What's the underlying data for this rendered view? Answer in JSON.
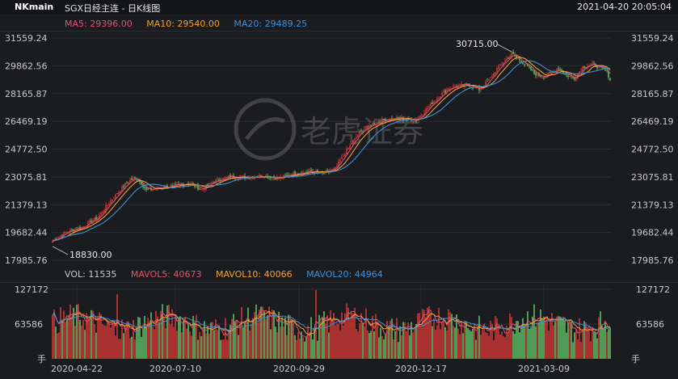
{
  "header": {
    "symbol": "NKmain",
    "name": "SGX日经主连 - 日K线图",
    "datetime": "2021-04-20 20:05:04"
  },
  "ma_legend": [
    {
      "label": "MA5: 29396.00",
      "color": "#e0506e"
    },
    {
      "label": "MA10: 29540.00",
      "color": "#f0a030"
    },
    {
      "label": "MA20: 29489.25",
      "color": "#3d8fd8"
    }
  ],
  "vol_legend": [
    {
      "label": "VOL: 11535",
      "color": "#c8c8c8"
    },
    {
      "label": "MAVOL5: 40673",
      "color": "#e0506e"
    },
    {
      "label": "MAVOL10: 40066",
      "color": "#f0a030"
    },
    {
      "label": "MAVOL20: 44964",
      "color": "#3d8fd8"
    }
  ],
  "watermark": "老虎证券",
  "colors": {
    "up": "#e53935",
    "down": "#66d36e",
    "ma5": "#e0506e",
    "ma10": "#f0a030",
    "ma20": "#3d8fd8"
  },
  "chart_data": {
    "type": "candlestick",
    "y_ticks": [
      "31559.24",
      "29862.56",
      "28165.87",
      "26469.19",
      "24772.50",
      "23075.81",
      "21379.13",
      "19682.44",
      "17985.76"
    ],
    "ylim": [
      17985.76,
      31559.24
    ],
    "vol_ticks": [
      "127172",
      "63586",
      "手"
    ],
    "vol_max": 127172,
    "x_ticks": [
      "2020-04-22",
      "2020-07-10",
      "2020-09-29",
      "2020-12-17",
      "2021-03-09"
    ],
    "annotations": {
      "high": "30715.00",
      "low": "18830.00"
    },
    "close_anchors": [
      [
        0,
        19150
      ],
      [
        8,
        19700
      ],
      [
        18,
        20000
      ],
      [
        28,
        20600
      ],
      [
        35,
        21500
      ],
      [
        42,
        22300
      ],
      [
        48,
        22900
      ],
      [
        52,
        23000
      ],
      [
        55,
        22700
      ],
      [
        58,
        22250
      ],
      [
        65,
        22400
      ],
      [
        75,
        22500
      ],
      [
        85,
        22700
      ],
      [
        92,
        22300
      ],
      [
        100,
        22800
      ],
      [
        110,
        23100
      ],
      [
        120,
        23050
      ],
      [
        130,
        23150
      ],
      [
        140,
        23000
      ],
      [
        150,
        23300
      ],
      [
        160,
        23400
      ],
      [
        168,
        23300
      ],
      [
        175,
        23600
      ],
      [
        182,
        24700
      ],
      [
        190,
        25800
      ],
      [
        198,
        26300
      ],
      [
        205,
        26550
      ],
      [
        215,
        26650
      ],
      [
        225,
        26550
      ],
      [
        232,
        27300
      ],
      [
        238,
        27900
      ],
      [
        245,
        28500
      ],
      [
        252,
        28650
      ],
      [
        258,
        28700
      ],
      [
        264,
        28400
      ],
      [
        270,
        29000
      ],
      [
        276,
        29800
      ],
      [
        280,
        30200
      ],
      [
        284,
        30600
      ],
      [
        288,
        30300
      ],
      [
        293,
        29900
      ],
      [
        298,
        29400
      ],
      [
        303,
        29200
      ],
      [
        308,
        29400
      ],
      [
        313,
        29700
      ],
      [
        318,
        29300
      ],
      [
        323,
        29100
      ],
      [
        328,
        29800
      ],
      [
        333,
        29950
      ],
      [
        338,
        29800
      ],
      [
        343,
        29500
      ],
      [
        345,
        29000
      ]
    ]
  }
}
